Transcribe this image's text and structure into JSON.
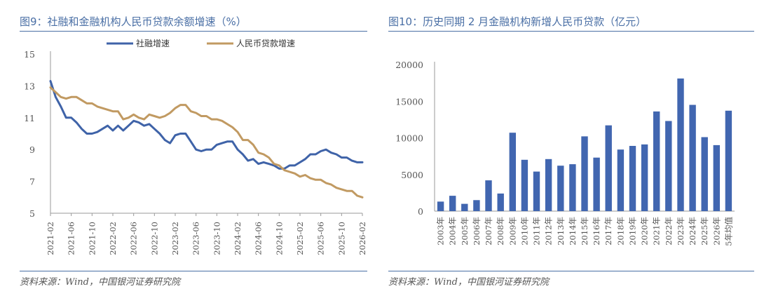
{
  "left": {
    "title": "图9：社融和金融机构人民币贷款余额增速（%）",
    "source": "资料来源：Wind，中国银河证券研究院"
  },
  "right": {
    "title": "图10：历史同期 2 月金融机构新增人民币贷款（亿元）",
    "source": "资料来源：Wind，中国银河证券研究院"
  },
  "colors": {
    "tsf": "#3f63a8",
    "loan": "#c19a62",
    "bar": "#4166b0",
    "rule": "#4a6fa5"
  },
  "chart_data": [
    {
      "type": "line",
      "title": "社融和金融机构人民币贷款余额增速（%）",
      "ylim": [
        5,
        15
      ],
      "yticks": [
        5,
        7,
        9,
        11,
        13,
        15
      ],
      "x_start": "2021-02",
      "x_step": "month",
      "xticks": [
        "2021-02",
        "2021-06",
        "2021-10",
        "2022-02",
        "2022-06",
        "2022-10",
        "2023-02",
        "2023-06",
        "2023-10",
        "2024-02",
        "2024-06",
        "2024-10",
        "2025-02",
        "2025-06",
        "2025-10",
        "2026-02"
      ],
      "series": [
        {
          "name": "社融增速",
          "color_key": "tsf",
          "values": [
            13.3,
            12.3,
            11.7,
            11.0,
            11.0,
            10.7,
            10.3,
            10.0,
            10.0,
            10.1,
            10.3,
            10.5,
            10.2,
            10.5,
            10.2,
            10.5,
            10.8,
            10.7,
            10.5,
            10.6,
            10.3,
            10.0,
            9.6,
            9.4,
            9.9,
            10.0,
            10.0,
            9.5,
            9.0,
            8.9,
            9.0,
            9.0,
            9.3,
            9.4,
            9.5,
            9.5,
            9.0,
            8.7,
            8.3,
            8.4,
            8.1,
            8.2,
            8.1,
            8.0,
            7.8,
            7.8,
            8.0,
            8.0,
            8.2,
            8.4,
            8.7,
            8.7,
            8.9,
            9.0,
            8.8,
            8.7,
            8.5,
            8.5,
            8.3,
            8.2,
            8.2
          ]
        },
        {
          "name": "人民币贷款增速",
          "color_key": "loan",
          "values": [
            12.9,
            12.6,
            12.3,
            12.2,
            12.3,
            12.3,
            12.1,
            11.9,
            11.9,
            11.7,
            11.6,
            11.5,
            11.4,
            11.4,
            10.9,
            11.0,
            11.2,
            11.0,
            10.9,
            11.2,
            11.1,
            11.0,
            11.1,
            11.3,
            11.6,
            11.8,
            11.8,
            11.4,
            11.3,
            11.1,
            11.1,
            10.9,
            10.9,
            10.8,
            10.6,
            10.4,
            10.1,
            9.6,
            9.6,
            9.3,
            8.8,
            8.7,
            8.5,
            8.1,
            8.0,
            7.7,
            7.6,
            7.5,
            7.3,
            7.4,
            7.2,
            7.1,
            7.1,
            6.9,
            6.8,
            6.6,
            6.5,
            6.4,
            6.4,
            6.1,
            6.0
          ]
        }
      ]
    },
    {
      "type": "bar",
      "title": "历史同期 2 月金融机构新增人民币贷款（亿元）",
      "ylim": [
        0,
        20000
      ],
      "yticks": [
        0,
        5000,
        10000,
        15000,
        20000
      ],
      "categories": [
        "2003年",
        "2004年",
        "2005年",
        "2006年",
        "2007年",
        "2008年",
        "2009年",
        "2010年",
        "2011年",
        "2012年",
        "2013年",
        "2014年",
        "2015年",
        "2016年",
        "2017年",
        "2018年",
        "2019年",
        "2020年",
        "2021年",
        "2022年",
        "2023年",
        "2024年",
        "2025年",
        "2026年",
        "5年均值"
      ],
      "values": [
        1300,
        2100,
        1000,
        1500,
        4200,
        2400,
        10700,
        7000,
        5400,
        7100,
        6200,
        6400,
        10200,
        7300,
        11700,
        8400,
        8900,
        9100,
        13600,
        12300,
        18100,
        14500,
        10100,
        9000,
        13700
      ]
    }
  ]
}
